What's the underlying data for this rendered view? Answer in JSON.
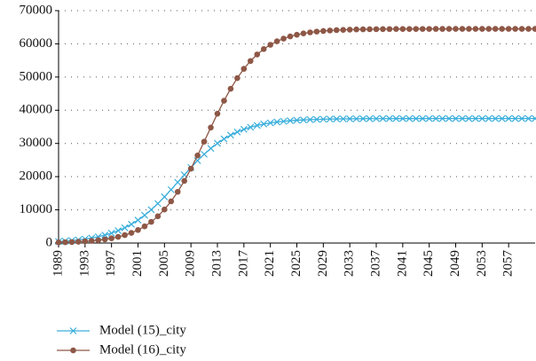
{
  "chart_data": {
    "type": "line",
    "x": [
      1989,
      1990,
      1991,
      1992,
      1993,
      1994,
      1995,
      1996,
      1997,
      1998,
      1999,
      2000,
      2001,
      2002,
      2003,
      2004,
      2005,
      2006,
      2007,
      2008,
      2009,
      2010,
      2011,
      2012,
      2013,
      2014,
      2015,
      2016,
      2017,
      2018,
      2019,
      2020,
      2021,
      2022,
      2023,
      2024,
      2025,
      2026,
      2027,
      2028,
      2029,
      2030,
      2031,
      2032,
      2033,
      2034,
      2035,
      2036,
      2037,
      2038,
      2039,
      2040,
      2041,
      2042,
      2043,
      2044,
      2045,
      2046,
      2047,
      2048,
      2049,
      2050,
      2051,
      2052,
      2053,
      2054,
      2055,
      2056,
      2057,
      2058,
      2059,
      2060,
      2061
    ],
    "series": [
      {
        "name": "Model (15)_city",
        "color": "#3aaedc",
        "marker": "x",
        "values": [
          469,
          594,
          753,
          952,
          1202,
          1515,
          1904,
          2389,
          2983,
          3713,
          4596,
          5656,
          6906,
          8365,
          10027,
          11886,
          13910,
          16067,
          18302,
          20548,
          22741,
          24818,
          26748,
          28495,
          30034,
          31368,
          32501,
          33452,
          34240,
          34887,
          35414,
          35840,
          36180,
          36454,
          36671,
          36848,
          36986,
          37092,
          37180,
          37247,
          37302,
          37343,
          37376,
          37403,
          37423,
          37440,
          37452,
          37462,
          37470,
          37476,
          37481,
          37485,
          37488,
          37490,
          37492,
          37494,
          37495,
          37496,
          37497,
          37497,
          37498,
          37498,
          37498,
          37499,
          37499,
          37499,
          37499,
          37499,
          37500,
          37500,
          37500,
          37500,
          37500
        ]
      },
      {
        "name": "Model (16)_city",
        "color": "#8e5746",
        "marker": "o",
        "values": [
          178,
          231,
          300,
          390,
          507,
          658,
          852,
          1104,
          1430,
          1847,
          2382,
          3064,
          3930,
          5019,
          6382,
          8063,
          10106,
          12556,
          15431,
          18723,
          22404,
          26380,
          30554,
          34790,
          38950,
          42870,
          46474,
          49683,
          52472,
          54837,
          56803,
          58418,
          59717,
          60763,
          61587,
          62235,
          62743,
          63142,
          63453,
          63691,
          63876,
          64019,
          64130,
          64215,
          64281,
          64331,
          64370,
          64400,
          64423,
          64441,
          64454,
          64465,
          64473,
          64479,
          64484,
          64488,
          64491,
          64493,
          64495,
          64496,
          64497,
          64498,
          64498,
          64499,
          64499,
          64499,
          64499,
          64500,
          64500,
          64500,
          64500,
          64500,
          64500
        ]
      }
    ],
    "xlim": [
      1989,
      2061
    ],
    "xticks": [
      1989,
      1993,
      1997,
      2001,
      2005,
      2009,
      2013,
      2017,
      2021,
      2025,
      2029,
      2033,
      2037,
      2041,
      2045,
      2049,
      2053,
      2057
    ],
    "ylim": [
      0,
      70000
    ],
    "yticks": [
      0,
      10000,
      20000,
      30000,
      40000,
      50000,
      60000,
      70000
    ],
    "grid": true
  }
}
